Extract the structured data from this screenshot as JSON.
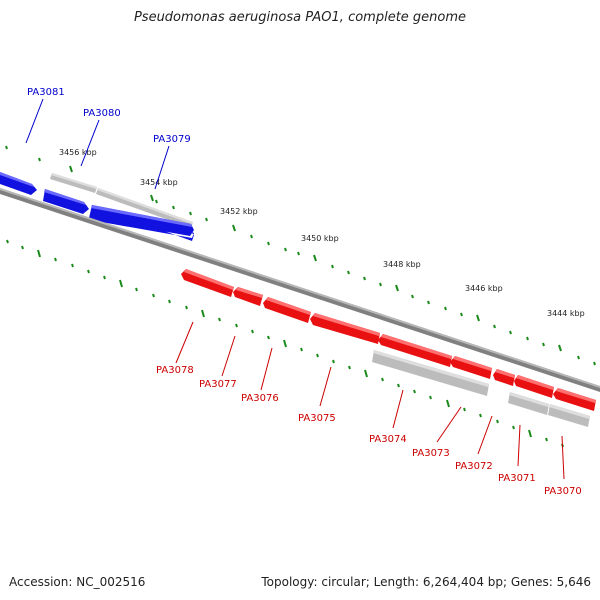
{
  "title": "Pseudomonas aeruginosa PAO1, complete genome",
  "footer": {
    "accession": "Accession: NC_002516",
    "summary": "Topology: circular; Length: 6,264,404 bp; Genes: 5,646"
  },
  "colors": {
    "forward_gene": "#1212e0",
    "reverse_gene": "#e81010",
    "rna_feature": "#b9b9b9",
    "backbone": "#7a7a7a",
    "tick": "#1a8a1a",
    "forward_label": "#0000cc",
    "reverse_label": "#cc0000"
  },
  "kbp_labels": [
    "3456 kbp",
    "3454 kbp",
    "3452 kbp",
    "3450 kbp",
    "3448 kbp",
    "3446 kbp",
    "3444 kbp"
  ],
  "genes_forward": [
    "PA3081",
    "PA3080",
    "PA3079"
  ],
  "genes_reverse": [
    "PA3078",
    "PA3077",
    "PA3076",
    "PA3075",
    "PA3074",
    "PA3073",
    "PA3072",
    "PA3071",
    "PA3070"
  ]
}
